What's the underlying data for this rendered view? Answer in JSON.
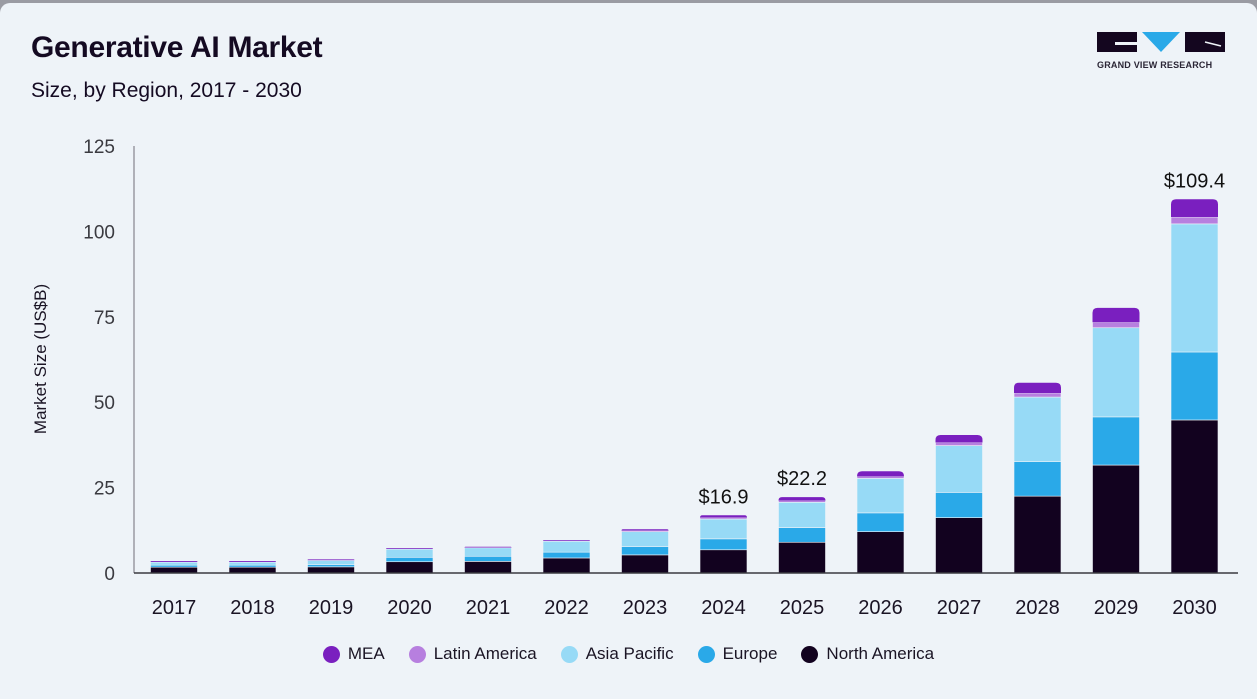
{
  "header": {
    "title": "Generative AI Market",
    "subtitle": "Size, by Region, 2017 - 2030",
    "logo_text": "GRAND VIEW RESEARCH",
    "logo_icon": "grand-view-research-logo"
  },
  "chart_data": {
    "type": "bar",
    "stacked": true,
    "title": "Generative AI Market",
    "subtitle": "Size, by Region, 2017 - 2030",
    "xlabel": "",
    "ylabel": "Market Size (US$B)",
    "ylim": [
      0,
      125
    ],
    "yticks": [
      0,
      25,
      50,
      75,
      100,
      125
    ],
    "grid": false,
    "legend_position": "bottom-center",
    "categories": [
      "2017",
      "2018",
      "2019",
      "2020",
      "2021",
      "2022",
      "2023",
      "2024",
      "2025",
      "2026",
      "2027",
      "2028",
      "2029",
      "2030"
    ],
    "series": [
      {
        "name": "North America",
        "color": "#12021f",
        "values": [
          1.7,
          1.7,
          1.8,
          3.3,
          3.4,
          4.4,
          5.3,
          6.8,
          9.0,
          12.1,
          16.2,
          22.5,
          31.6,
          44.8
        ]
      },
      {
        "name": "Europe",
        "color": "#2aa9e8",
        "values": [
          0.6,
          0.6,
          0.7,
          1.3,
          1.5,
          1.7,
          2.4,
          3.2,
          4.3,
          5.5,
          7.4,
          10.1,
          14.1,
          19.9
        ]
      },
      {
        "name": "Asia Pacific",
        "color": "#97daf6",
        "values": [
          1.0,
          1.0,
          1.3,
          2.5,
          2.6,
          3.3,
          4.4,
          5.8,
          7.4,
          10.1,
          13.7,
          18.9,
          26.1,
          37.5
        ]
      },
      {
        "name": "Latin America",
        "color": "#b77fdf",
        "values": [
          0.1,
          0.1,
          0.1,
          0.1,
          0.1,
          0.1,
          0.3,
          0.4,
          0.5,
          0.6,
          0.9,
          1.2,
          1.6,
          2.0
        ]
      },
      {
        "name": "MEA",
        "color": "#7a1fbf",
        "values": [
          0.1,
          0.1,
          0.1,
          0.1,
          0.1,
          0.1,
          0.4,
          0.7,
          1.0,
          1.5,
          2.2,
          3.0,
          4.2,
          5.2
        ]
      }
    ],
    "annotations": [
      {
        "category": "2024",
        "text": "$16.9"
      },
      {
        "category": "2025",
        "text": "$22.2"
      },
      {
        "category": "2030",
        "text": "$109.4"
      }
    ],
    "legend_order": [
      "MEA",
      "Latin America",
      "Asia Pacific",
      "Europe",
      "North America"
    ]
  }
}
